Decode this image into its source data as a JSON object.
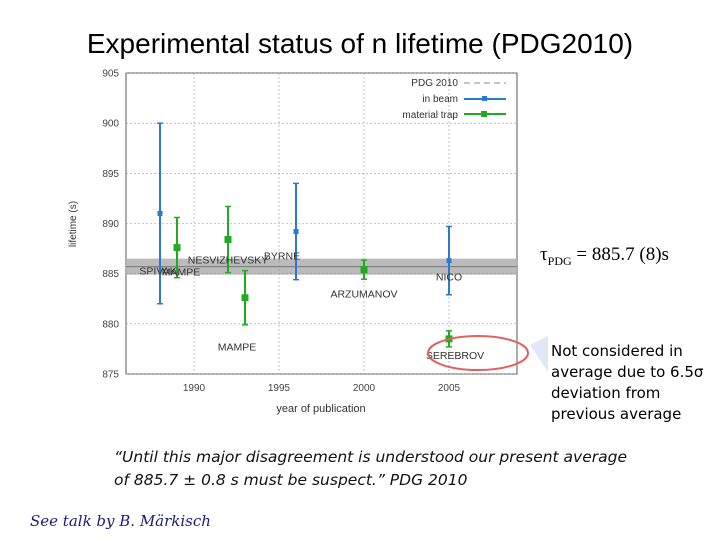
{
  "title": "Experimental status of n lifetime (PDG2010)",
  "chart_data": {
    "type": "scatter",
    "xlabel": "year of publication",
    "ylabel": "lifetime (s)",
    "xlim": [
      1986,
      2009
    ],
    "ylim": [
      875,
      905
    ],
    "x_ticks": [
      {
        "value": 1990,
        "label": "1990"
      },
      {
        "value": 1995,
        "label": "1995"
      },
      {
        "value": 2000,
        "label": "2000"
      },
      {
        "value": 2005,
        "label": "2005"
      }
    ],
    "y_ticks": [
      {
        "value": 875,
        "label": "875"
      },
      {
        "value": 880,
        "label": "880"
      },
      {
        "value": 885,
        "label": "885"
      },
      {
        "value": 890,
        "label": "890"
      },
      {
        "value": 895,
        "label": "895"
      },
      {
        "value": 900,
        "label": "900"
      },
      {
        "value": 905,
        "label": "905"
      }
    ],
    "grid": true,
    "legend_position": "top-right",
    "pdg_band": {
      "name": "PDG 2010",
      "value": 885.7,
      "low": 884.9,
      "high": 886.5
    },
    "series": [
      {
        "name": "in beam",
        "color": "#2a7bd0",
        "marker": "square",
        "points": [
          {
            "x": 1988,
            "y": 891.0,
            "err": 9.0,
            "label": "SPIVAK"
          },
          {
            "x": 1996,
            "y": 889.2,
            "err": 4.8,
            "label": "BYRNE"
          },
          {
            "x": 2005,
            "y": 886.3,
            "err": 3.4,
            "label": "NICO"
          }
        ]
      },
      {
        "name": "material trap",
        "color": "#22aa22",
        "marker": "square",
        "points": [
          {
            "x": 1989,
            "y": 887.6,
            "err": 3.0,
            "label": "MAMPE"
          },
          {
            "x": 1992,
            "y": 888.4,
            "err": 3.3,
            "label": "NESVIZHEVSKY"
          },
          {
            "x": 1993,
            "y": 882.6,
            "err": 2.7,
            "label": "MAMPE"
          },
          {
            "x": 2000,
            "y": 885.4,
            "err": 0.95,
            "label": "ARZUMANOV"
          },
          {
            "x": 2005,
            "y": 878.5,
            "err": 0.8,
            "label": "SEREBROV"
          }
        ]
      }
    ],
    "tau_label": "τPDG = 885.7 (8)s",
    "callout": "Not considered in average due to 6.5σ deviation from previous average"
  },
  "tau": {
    "symbol": "τ",
    "sub": "PDG",
    "value": " = 885.7  (8)s"
  },
  "callout_text": "Not considered in average due to 6.5σ deviation from previous average",
  "quote": "“Until this major disagreement is understood our present average of 885.7 ± 0.8 s must be suspect.”  PDG 2010",
  "credit": "See talk by B. Märkisch",
  "colors": {
    "in_beam": "#2a7bd0",
    "material_trap": "#22aa22",
    "band": "#b4b4b4",
    "pdg_line": "#888888",
    "highlight": "#e06060",
    "arrow": "#9ab4d6"
  }
}
